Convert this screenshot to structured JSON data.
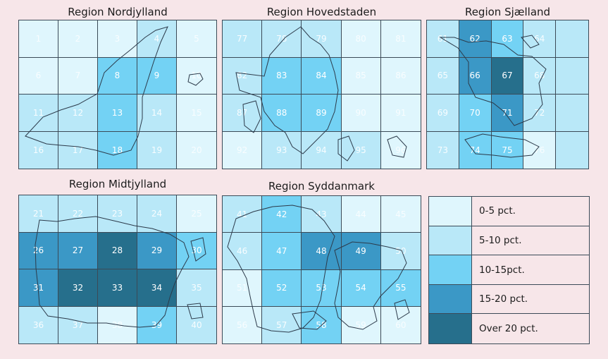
{
  "regions": [
    {
      "title": "Region Nordjylland",
      "cells": [
        [
          "1",
          0
        ],
        [
          "2",
          0
        ],
        [
          "3",
          0
        ],
        [
          "4",
          1
        ],
        [
          "5",
          0
        ],
        [
          "6",
          0
        ],
        [
          "7",
          0
        ],
        [
          "8",
          2
        ],
        [
          "9",
          2
        ],
        [
          "10",
          0
        ],
        [
          "11",
          1
        ],
        [
          "12",
          1
        ],
        [
          "13",
          2
        ],
        [
          "14",
          1
        ],
        [
          "15",
          0
        ],
        [
          "16",
          1
        ],
        [
          "17",
          1
        ],
        [
          "18",
          2
        ],
        [
          "19",
          1
        ],
        [
          "20",
          0
        ]
      ]
    },
    {
      "title": "Region Hovedstaden",
      "cells": [
        [
          "77",
          1
        ],
        [
          "78",
          1
        ],
        [
          "79",
          1
        ],
        [
          "80",
          0
        ],
        [
          "81",
          0
        ],
        [
          "82",
          1
        ],
        [
          "83",
          2
        ],
        [
          "84",
          2
        ],
        [
          "85",
          0
        ],
        [
          "86",
          0
        ],
        [
          "87",
          1
        ],
        [
          "88",
          2
        ],
        [
          "89",
          2
        ],
        [
          "90",
          0
        ],
        [
          "91",
          0
        ],
        [
          "92",
          0
        ],
        [
          "93",
          1
        ],
        [
          "94",
          1
        ],
        [
          "95",
          1
        ],
        [
          "96",
          0
        ]
      ]
    },
    {
      "title": "Region Sjælland",
      "cells": [
        [
          "61",
          1
        ],
        [
          "62",
          3
        ],
        [
          "63",
          2
        ],
        [
          "64",
          1
        ],
        [
          "",
          1
        ],
        [
          "65",
          1
        ],
        [
          "66",
          3
        ],
        [
          "67",
          4
        ],
        [
          "68",
          1
        ],
        [
          "",
          1
        ],
        [
          "69",
          1
        ],
        [
          "70",
          2
        ],
        [
          "71",
          3
        ],
        [
          "72",
          1
        ],
        [
          "",
          1
        ],
        [
          "73",
          1
        ],
        [
          "74",
          2
        ],
        [
          "75",
          2
        ],
        [
          "76",
          0
        ],
        [
          "",
          1
        ]
      ]
    },
    {
      "title": "Region Midtjylland",
      "cells": [
        [
          "21",
          1
        ],
        [
          "22",
          1
        ],
        [
          "23",
          1
        ],
        [
          "24",
          1
        ],
        [
          "25",
          0
        ],
        [
          "26",
          3
        ],
        [
          "27",
          3
        ],
        [
          "28",
          4
        ],
        [
          "29",
          3
        ],
        [
          "30",
          2
        ],
        [
          "31",
          3
        ],
        [
          "32",
          4
        ],
        [
          "33",
          4
        ],
        [
          "34",
          4
        ],
        [
          "35",
          1
        ],
        [
          "36",
          1
        ],
        [
          "37",
          1
        ],
        [
          "38",
          0
        ],
        [
          "39",
          2
        ],
        [
          "40",
          1
        ]
      ]
    },
    {
      "title": "Region Syddanmark",
      "cells": [
        [
          "41",
          1
        ],
        [
          "42",
          2
        ],
        [
          "43",
          1
        ],
        [
          "44",
          0
        ],
        [
          "45",
          0
        ],
        [
          "46",
          1
        ],
        [
          "47",
          2
        ],
        [
          "48",
          3
        ],
        [
          "49",
          3
        ],
        [
          "50",
          1
        ],
        [
          "51",
          0
        ],
        [
          "52",
          2
        ],
        [
          "53",
          2
        ],
        [
          "54",
          2
        ],
        [
          "55",
          2
        ],
        [
          "56",
          0
        ],
        [
          "57",
          1
        ],
        [
          "58",
          2
        ],
        [
          "59",
          0
        ],
        [
          "60",
          0
        ]
      ]
    }
  ],
  "legend": [
    {
      "label": "0-5 pct.",
      "color": "#dff6fd"
    },
    {
      "label": "5-10 pct.",
      "color": "#b9e8f8"
    },
    {
      "label": "10-15pct.",
      "color": "#73d2f4"
    },
    {
      "label": "15-20 pct.",
      "color": "#3b98c6"
    },
    {
      "label": "Over 20 pct.",
      "color": "#266f8c"
    }
  ]
}
